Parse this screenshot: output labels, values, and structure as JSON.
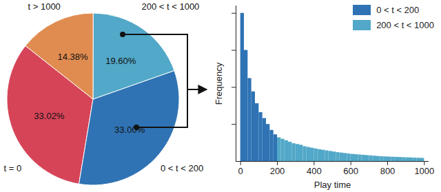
{
  "chart_data": [
    {
      "type": "pie",
      "categories": [
        "t = 0",
        "0 < t < 200",
        "200 < t < 1000",
        "t > 1000"
      ],
      "values": [
        33.02,
        33.0,
        19.6,
        14.38
      ],
      "value_labels": [
        "33.02%",
        "33.00%",
        "19.60%",
        "14.38%"
      ],
      "colors": [
        "#d64458",
        "#2f73b4",
        "#52a8c8",
        "#e08c50"
      ],
      "data_labels": true
    },
    {
      "type": "histogram",
      "xlabel": "Play time",
      "ylabel": "Frequency",
      "series": [
        {
          "name": "0 < t < 200",
          "color": "#2f73b4",
          "bins": [
            0,
            20,
            40,
            60,
            80,
            100,
            120,
            140,
            160,
            180,
            200
          ],
          "counts": [
            1.0,
            0.75,
            0.56,
            0.47,
            0.39,
            0.33,
            0.29,
            0.25,
            0.21,
            0.18
          ]
        },
        {
          "name": "200 < t < 1000",
          "color": "#52a8c8",
          "bins": [
            200,
            220,
            240,
            260,
            280,
            300,
            320,
            340,
            360,
            380,
            400,
            420,
            440,
            460,
            480,
            500,
            520,
            540,
            560,
            580,
            600,
            620,
            640,
            660,
            680,
            700,
            720,
            740,
            760,
            780,
            800,
            820,
            840,
            860,
            880,
            900,
            920,
            940,
            960,
            980,
            1000
          ],
          "counts": [
            0.16,
            0.15,
            0.14,
            0.13,
            0.12,
            0.115,
            0.11,
            0.1,
            0.095,
            0.09,
            0.085,
            0.08,
            0.076,
            0.072,
            0.068,
            0.064,
            0.06,
            0.057,
            0.054,
            0.051,
            0.048,
            0.046,
            0.044,
            0.042,
            0.04,
            0.038,
            0.036,
            0.034,
            0.032,
            0.031,
            0.03,
            0.029,
            0.028,
            0.027,
            0.026,
            0.025,
            0.024,
            0.023,
            0.022,
            0.021
          ]
        }
      ],
      "xlim": [
        -25,
        1025
      ],
      "ylim": [
        0,
        1.05
      ],
      "xticks": [
        0,
        200,
        400,
        600,
        800,
        1000
      ],
      "yticks": [
        0.25,
        0.5,
        0.75,
        1
      ],
      "tick_labels": "x",
      "legend": "top-right"
    }
  ]
}
